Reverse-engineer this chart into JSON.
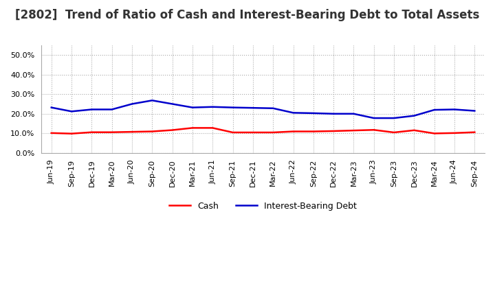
{
  "title": "[2802]  Trend of Ratio of Cash and Interest-Bearing Debt to Total Assets",
  "x_labels": [
    "Jun-19",
    "Sep-19",
    "Dec-19",
    "Mar-20",
    "Jun-20",
    "Sep-20",
    "Dec-20",
    "Mar-21",
    "Jun-21",
    "Sep-21",
    "Dec-21",
    "Mar-22",
    "Jun-22",
    "Sep-22",
    "Dec-22",
    "Mar-23",
    "Jun-23",
    "Sep-23",
    "Dec-23",
    "Mar-24",
    "Jun-24",
    "Sep-24"
  ],
  "cash": [
    0.102,
    0.099,
    0.106,
    0.106,
    0.108,
    0.11,
    0.117,
    0.128,
    0.128,
    0.105,
    0.105,
    0.105,
    0.11,
    0.11,
    0.112,
    0.115,
    0.118,
    0.105,
    0.116,
    0.1,
    0.102,
    0.106
  ],
  "interest_bearing_debt": [
    0.232,
    0.212,
    0.222,
    0.222,
    0.25,
    0.268,
    0.25,
    0.232,
    0.235,
    0.232,
    0.23,
    0.228,
    0.205,
    0.203,
    0.2,
    0.2,
    0.178,
    0.178,
    0.19,
    0.22,
    0.222,
    0.215
  ],
  "cash_color": "#ff0000",
  "debt_color": "#0000cc",
  "ylim": [
    0.0,
    0.55
  ],
  "yticks": [
    0.0,
    0.1,
    0.2,
    0.3,
    0.4,
    0.5
  ],
  "background_color": "#ffffff",
  "grid_color": "#aaaaaa",
  "title_fontsize": 12,
  "tick_fontsize": 8,
  "legend_cash": "Cash",
  "legend_debt": "Interest-Bearing Debt",
  "linewidth": 1.8
}
